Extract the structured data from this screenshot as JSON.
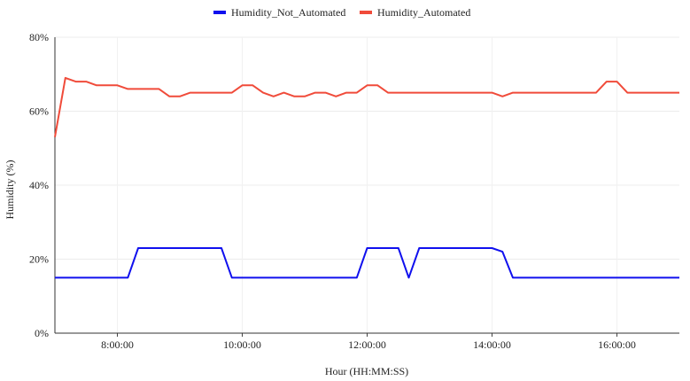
{
  "chart_data": {
    "type": "line",
    "xlabel": "Hour (HH:MM:SS)",
    "ylabel": "Humidity (%)",
    "ylim": [
      0,
      80
    ],
    "y_tick_values": [
      0,
      20,
      40,
      60,
      80
    ],
    "y_tick_labels": [
      "0%",
      "20%",
      "40%",
      "60%",
      "80%"
    ],
    "xlim": [
      "7:00:00",
      "17:00:00"
    ],
    "x_tick_values": [
      "8:00:00",
      "10:00:00",
      "12:00:00",
      "14:00:00",
      "16:00:00"
    ],
    "x_tick_labels": [
      "8:00:00",
      "10:00:00",
      "12:00:00",
      "14:00:00",
      "16:00:00"
    ],
    "grid": true,
    "legend": "top-center",
    "series": [
      {
        "name": "Humidity_Not_Automated",
        "color": "#1010ee",
        "points": [
          [
            "7:00:00",
            15
          ],
          [
            "8:10:00",
            15
          ],
          [
            "8:20:00",
            23
          ],
          [
            "9:40:00",
            23
          ],
          [
            "9:50:00",
            15
          ],
          [
            "11:50:00",
            15
          ],
          [
            "12:00:00",
            23
          ],
          [
            "12:30:00",
            23
          ],
          [
            "12:40:00",
            15
          ],
          [
            "12:50:00",
            23
          ],
          [
            "14:00:00",
            23
          ],
          [
            "14:10:00",
            22
          ],
          [
            "14:20:00",
            15
          ],
          [
            "17:00:00",
            15
          ]
        ]
      },
      {
        "name": "Humidity_Automated",
        "color": "#f04b3a",
        "points": [
          [
            "7:00:00",
            53
          ],
          [
            "7:10:00",
            69
          ],
          [
            "7:20:00",
            68
          ],
          [
            "7:30:00",
            68
          ],
          [
            "7:40:00",
            67
          ],
          [
            "8:00:00",
            67
          ],
          [
            "8:10:00",
            66
          ],
          [
            "8:40:00",
            66
          ],
          [
            "8:50:00",
            64
          ],
          [
            "9:00:00",
            64
          ],
          [
            "9:10:00",
            65
          ],
          [
            "9:50:00",
            65
          ],
          [
            "10:00:00",
            67
          ],
          [
            "10:10:00",
            67
          ],
          [
            "10:20:00",
            65
          ],
          [
            "10:30:00",
            64
          ],
          [
            "10:40:00",
            65
          ],
          [
            "10:50:00",
            64
          ],
          [
            "11:00:00",
            64
          ],
          [
            "11:10:00",
            65
          ],
          [
            "11:20:00",
            65
          ],
          [
            "11:30:00",
            64
          ],
          [
            "11:40:00",
            65
          ],
          [
            "11:50:00",
            65
          ],
          [
            "12:00:00",
            67
          ],
          [
            "12:10:00",
            67
          ],
          [
            "12:20:00",
            65
          ],
          [
            "14:00:00",
            65
          ],
          [
            "14:10:00",
            64
          ],
          [
            "14:20:00",
            65
          ],
          [
            "15:40:00",
            65
          ],
          [
            "15:50:00",
            68
          ],
          [
            "16:00:00",
            68
          ],
          [
            "16:10:00",
            65
          ],
          [
            "17:00:00",
            65
          ]
        ]
      }
    ]
  }
}
